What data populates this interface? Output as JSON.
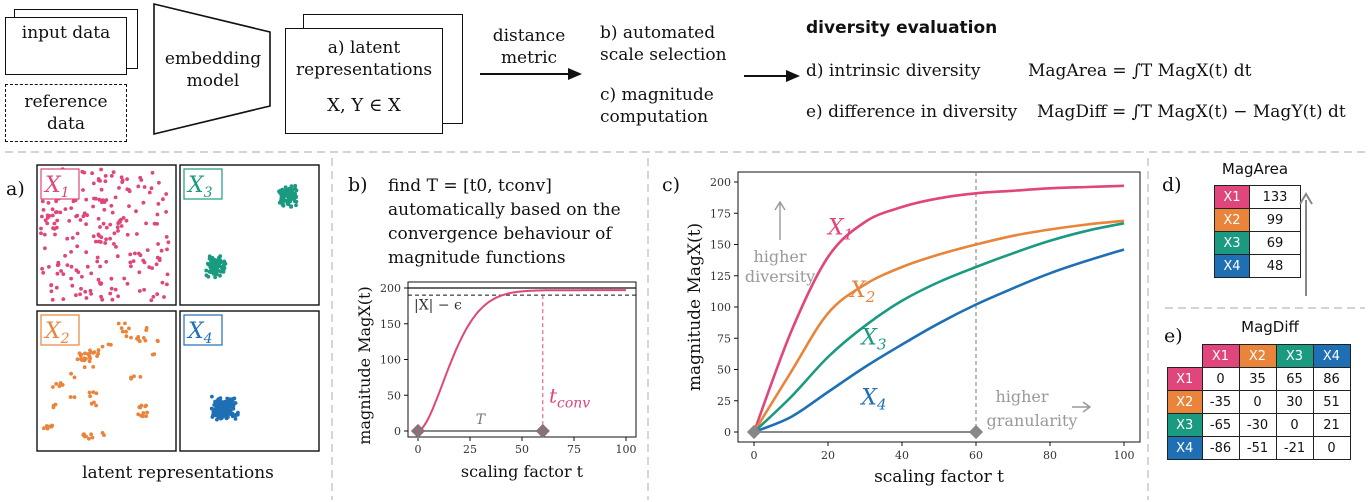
{
  "pipeline": {
    "input_data": "input data",
    "reference_data": "reference data",
    "embedding_model": "embedding model",
    "latent_title": "a) latent representations",
    "latent_formula": "X, Y ∈ X",
    "distance_metric": "distance metric",
    "step_b": "b) automated scale selection",
    "step_c": "c) magnitude computation",
    "diversity_title": "diversity evaluation",
    "step_d": "d) intrinsic diversity",
    "magarea_formula": "MagArea = ∫T MagX(t) dt",
    "step_e": "e) difference in diversity",
    "magdiff_formula": "MagDiff = ∫T MagX(t) − MagY(t) dt"
  },
  "panel_a": {
    "label": "a)",
    "caption": "latent representations",
    "sets": [
      {
        "name": "X1",
        "color": "#e0457b",
        "pattern": "uniform"
      },
      {
        "name": "X3",
        "color": "#1a9a80",
        "pattern": "two-clusters"
      },
      {
        "name": "X2",
        "color": "#e9843a",
        "pattern": "scattered-clumps"
      },
      {
        "name": "X4",
        "color": "#1f6fb5",
        "pattern": "single-cluster"
      }
    ]
  },
  "panel_b": {
    "label": "b)",
    "description": "find T = [t0, tconv] automatically based on the convergence behaviour of magnitude functions",
    "ylabel": "magnitude MagX(t)",
    "xlabel": "scaling factor t",
    "epsilon_label": "|X| − ϵ",
    "t_label": "T",
    "tconv_label": "tconv",
    "xticks": [
      "0",
      "25",
      "50",
      "75",
      "100"
    ],
    "yticks": [
      "0",
      "50",
      "100",
      "150",
      "200"
    ]
  },
  "panel_c": {
    "label": "c)",
    "ylabel": "magnitude MagX(t)",
    "xlabel": "scaling factor t",
    "higher_diversity": "higher diversity",
    "higher_granularity": "higher granularity",
    "xticks": [
      "0",
      "20",
      "40",
      "60",
      "80",
      "100"
    ],
    "yticks": [
      "0",
      "25",
      "50",
      "75",
      "100",
      "125",
      "150",
      "175",
      "200"
    ]
  },
  "chart_data": {
    "type": "line",
    "xlabel": "scaling factor t",
    "ylabel": "magnitude MagX(t)",
    "xlim": [
      0,
      100
    ],
    "ylim": [
      0,
      200
    ],
    "x": [
      0,
      10,
      20,
      30,
      40,
      50,
      60,
      70,
      80,
      90,
      100
    ],
    "series": [
      {
        "name": "X1",
        "color": "#e0457b",
        "values": [
          0,
          80,
          140,
          168,
          180,
          187,
          191,
          193,
          195,
          196,
          197
        ]
      },
      {
        "name": "X2",
        "color": "#e9843a",
        "values": [
          0,
          48,
          95,
          118,
          132,
          142,
          150,
          157,
          162,
          166,
          169
        ]
      },
      {
        "name": "X3",
        "color": "#1a9a80",
        "values": [
          0,
          28,
          60,
          85,
          105,
          120,
          132,
          143,
          153,
          161,
          167
        ]
      },
      {
        "name": "X4",
        "color": "#1f6fb5",
        "values": [
          0,
          12,
          32,
          52,
          70,
          87,
          102,
          115,
          127,
          137,
          146
        ]
      }
    ]
  },
  "panel_d": {
    "label": "d)",
    "title": "MagArea",
    "rows": [
      {
        "name": "X1",
        "color": "#e0457b",
        "value": "133"
      },
      {
        "name": "X2",
        "color": "#e9843a",
        "value": "99"
      },
      {
        "name": "X3",
        "color": "#1a9a80",
        "value": "69"
      },
      {
        "name": "X4",
        "color": "#1f6fb5",
        "value": "48"
      }
    ]
  },
  "panel_e": {
    "label": "e)",
    "title": "MagDiff",
    "header": [
      "X1",
      "X2",
      "X3",
      "X4"
    ],
    "rows": [
      [
        "0",
        "35",
        "65",
        "86"
      ],
      [
        "-35",
        "0",
        "30",
        "51"
      ],
      [
        "-65",
        "-30",
        "0",
        "21"
      ],
      [
        "-86",
        "-51",
        "-21",
        "0"
      ]
    ]
  }
}
